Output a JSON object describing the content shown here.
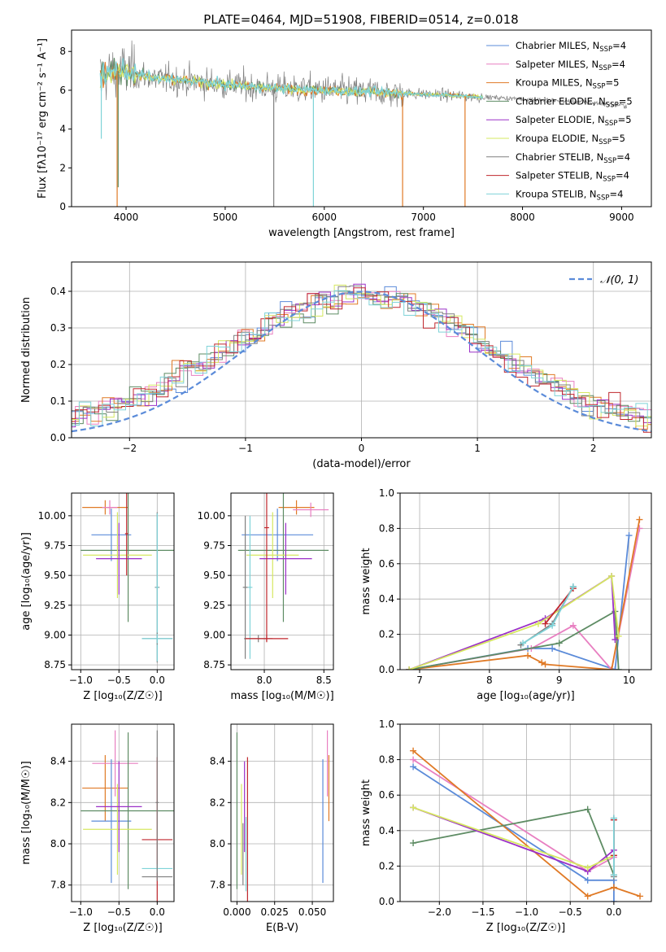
{
  "figure": {
    "title": "PLATE=0464, MJD=51908, FIBERID=0514, z=0.018"
  },
  "colors": {
    "c_chab_miles": "#5b8bd9",
    "c_salp_miles": "#e87fc1",
    "c_krou_miles": "#e07a26",
    "c_chab_elodie": "#5e8c64",
    "c_salp_elodie": "#9b30c8",
    "c_krou_elodie": "#d6e860",
    "c_chab_stelib": "#808080",
    "c_salp_stelib": "#c0272d",
    "c_krou_stelib": "#7fd3d8",
    "c_normal": "#5b8bd9"
  },
  "chart_data": [
    {
      "id": "spectrum",
      "type": "line",
      "xlabel": "wavelength [Angstrom, rest frame]",
      "ylabel": "Flux [fλ10⁻¹⁷ erg cm⁻² s⁻¹ A⁻¹]",
      "xlim": [
        3450,
        9300
      ],
      "ylim": [
        0,
        9.1
      ],
      "xticks": [
        4000,
        5000,
        6000,
        7000,
        8000,
        9000
      ],
      "yticks": [
        0,
        2,
        4,
        6,
        8
      ],
      "grid": false,
      "legend": "top-right",
      "legend_entries": [
        {
          "label": "Chabrier MILES, N",
          "sub": "SSP",
          "tail": "=4",
          "color": "c_chab_miles"
        },
        {
          "label": "Salpeter MILES, N",
          "sub": "SSP",
          "tail": "=4",
          "color": "c_salp_miles"
        },
        {
          "label": "Kroupa MILES, N",
          "sub": "SSP",
          "tail": "=5",
          "color": "c_krou_miles"
        },
        {
          "label": "Chabrier ELODIE, N",
          "sub": "SSP",
          "tail": "=5",
          "color": "c_chab_elodie"
        },
        {
          "label": "Salpeter ELODIE, N",
          "sub": "SSP",
          "tail": "=5",
          "color": "c_salp_elodie"
        },
        {
          "label": "Kroupa ELODIE, N",
          "sub": "SSP",
          "tail": "=5",
          "color": "c_krou_elodie"
        },
        {
          "label": "Chabrier STELIB, N",
          "sub": "SSP",
          "tail": "=4",
          "color": "c_chab_stelib"
        },
        {
          "label": "Salpeter STELIB, N",
          "sub": "SSP",
          "tail": "=4",
          "color": "c_salp_stelib"
        },
        {
          "label": "Kroupa STELIB, N",
          "sub": "SSP",
          "tail": "=4",
          "color": "c_krou_stelib"
        }
      ],
      "continuum": [
        [
          3740,
          6.7
        ],
        [
          3900,
          7.0
        ],
        [
          4000,
          7.0
        ],
        [
          4300,
          6.6
        ],
        [
          4600,
          6.5
        ],
        [
          5000,
          6.3
        ],
        [
          5500,
          6.1
        ],
        [
          6000,
          6.0
        ],
        [
          6500,
          5.9
        ],
        [
          7000,
          5.8
        ],
        [
          7400,
          5.7
        ],
        [
          7800,
          5.6
        ],
        [
          8200,
          5.5
        ],
        [
          8600,
          5.4
        ],
        [
          9050,
          5.2
        ]
      ],
      "dips": [
        {
          "series": "c_krou_miles",
          "x": 3910,
          "y": 0
        },
        {
          "series": "c_chab_elodie",
          "x": 3920,
          "y": 1.0
        },
        {
          "series": "c_chab_stelib",
          "x": 5490,
          "y": 0
        },
        {
          "series": "c_krou_stelib",
          "x": 5890,
          "y": 0
        },
        {
          "series": "c_krou_miles",
          "x": 6790,
          "y": 0
        },
        {
          "series": "c_krou_miles",
          "x": 7420,
          "y": 0
        },
        {
          "series": "c_krou_stelib",
          "x": 3750,
          "y": 3.5
        }
      ]
    },
    {
      "id": "residuals",
      "type": "histogram",
      "xlabel": "(data-model)/error",
      "ylabel": "Normed distribution",
      "xlim": [
        -2.5,
        2.5
      ],
      "ylim": [
        0,
        0.48
      ],
      "xticks": [
        -2,
        -1,
        0,
        1,
        2
      ],
      "yticks": [
        0.0,
        0.1,
        0.2,
        0.3,
        0.4
      ],
      "grid": true,
      "legend": "top-right",
      "legend_label": "𝒩(0, 1)",
      "bin_width": 0.1
    },
    {
      "id": "age_vs_Z",
      "type": "errorbar",
      "xlabel": "Z [log₁₀(Z/Z☉)]",
      "ylabel": "age  [log₁₀(age/yr)]",
      "xlim": [
        -1.12,
        0.22
      ],
      "ylim": [
        8.71,
        10.19
      ],
      "xticks": [
        -1.0,
        -0.5,
        0.0
      ],
      "yticks": [
        8.75,
        9.0,
        9.25,
        9.5,
        9.75,
        10.0
      ],
      "points": [
        {
          "c": "c_krou_miles",
          "x": -0.68,
          "y": 10.07,
          "xerr": 0.3,
          "yerr": 0.06
        },
        {
          "c": "c_salp_miles",
          "x": -0.62,
          "y": 10.07,
          "xerr": 0.1,
          "yerr": 0.06
        },
        {
          "c": "c_chab_miles",
          "x": -0.6,
          "y": 9.84,
          "xerr": 0.26,
          "yerr": 0.22
        },
        {
          "c": "c_chab_elodie",
          "x": -0.38,
          "y": 9.71,
          "xerr": 0.62,
          "yerr": 0.6
        },
        {
          "c": "c_krou_elodie",
          "x": -0.52,
          "y": 9.67,
          "xerr": 0.45,
          "yerr": 0.36
        },
        {
          "c": "c_salp_elodie",
          "x": -0.5,
          "y": 9.64,
          "xerr": 0.3,
          "yerr": 0.3
        },
        {
          "c": "c_salp_stelib",
          "x": -0.4,
          "y": 9.85,
          "xerr": 0.02,
          "yerr": 0.35
        },
        {
          "c": "c_chab_stelib",
          "x": 0.0,
          "y": 9.4,
          "xerr": 0.03,
          "yerr": 0.63
        },
        {
          "c": "c_krou_stelib",
          "x": 0.0,
          "y": 9.4,
          "xerr": 0.02,
          "yerr": 0.62
        },
        {
          "c": "c_chab_stelib",
          "x": 0.0,
          "y": 8.97,
          "xerr": 0.2,
          "yerr": 0.05
        },
        {
          "c": "c_krou_stelib",
          "x": 0.0,
          "y": 8.97,
          "xerr": 0.2,
          "yerr": 0.04
        }
      ]
    },
    {
      "id": "age_vs_mass",
      "type": "errorbar",
      "xlabel": "mass [log₁₀(M/M☉)]",
      "ylabel": "",
      "xlim": [
        7.72,
        8.58
      ],
      "ylim": [
        8.71,
        10.19
      ],
      "xticks": [
        8.0,
        8.5
      ],
      "yticks": [
        8.75,
        9.0,
        9.25,
        9.5,
        9.75,
        10.0
      ],
      "points": [
        {
          "c": "c_krou_miles",
          "x": 8.27,
          "y": 10.07,
          "xerr": 0.15,
          "yerr": 0.06
        },
        {
          "c": "c_salp_miles",
          "x": 8.39,
          "y": 10.05,
          "xerr": 0.15,
          "yerr": 0.06
        },
        {
          "c": "c_chab_miles",
          "x": 8.11,
          "y": 9.84,
          "xerr": 0.3,
          "yerr": 0.22
        },
        {
          "c": "c_chab_elodie",
          "x": 8.16,
          "y": 9.71,
          "xerr": 0.38,
          "yerr": 0.6
        },
        {
          "c": "c_krou_elodie",
          "x": 8.07,
          "y": 9.67,
          "xerr": 0.22,
          "yerr": 0.36
        },
        {
          "c": "c_salp_elodie",
          "x": 8.18,
          "y": 9.64,
          "xerr": 0.22,
          "yerr": 0.3
        },
        {
          "c": "c_salp_stelib",
          "x": 8.02,
          "y": 9.9,
          "xerr": 0.02,
          "yerr": 0.95
        },
        {
          "c": "c_chab_stelib",
          "x": 7.84,
          "y": 9.4,
          "xerr": 0.02,
          "yerr": 0.6
        },
        {
          "c": "c_krou_stelib",
          "x": 7.88,
          "y": 9.4,
          "xerr": 0.02,
          "yerr": 0.6
        },
        {
          "c": "c_chab_stelib",
          "x": 7.95,
          "y": 8.97,
          "xerr": 0.12,
          "yerr": 0.03
        },
        {
          "c": "c_salp_stelib",
          "x": 8.02,
          "y": 8.97,
          "xerr": 0.18,
          "yerr": 0.03
        }
      ]
    },
    {
      "id": "weight_vs_age",
      "type": "line",
      "xlabel": "age  [log₁₀(age/yr)]",
      "ylabel": "mass weight",
      "xlim": [
        6.72,
        10.32
      ],
      "ylim": [
        0,
        1.0
      ],
      "xticks": [
        7,
        8,
        9,
        10
      ],
      "yticks": [
        0.0,
        0.2,
        0.4,
        0.6,
        0.8,
        1.0
      ],
      "series": [
        {
          "c": "c_chab_miles",
          "age": [
            6.85,
            8.55,
            8.9,
            9.8,
            10.0
          ],
          "w": [
            0.0,
            0.12,
            0.12,
            0.0,
            0.76
          ]
        },
        {
          "c": "c_salp_miles",
          "age": [
            6.85,
            8.6,
            9.2,
            9.75,
            10.15
          ],
          "w": [
            0.0,
            0.12,
            0.25,
            0.0,
            0.8
          ]
        },
        {
          "c": "c_krou_miles",
          "age": [
            6.85,
            8.55,
            8.75,
            8.8,
            9.75,
            10.15
          ],
          "w": [
            0.0,
            0.08,
            0.04,
            0.03,
            0.0,
            0.85
          ]
        },
        {
          "c": "c_chab_elodie",
          "age": [
            6.85,
            9.0,
            9.8,
            9.85
          ],
          "w": [
            0.0,
            0.15,
            0.33,
            0.0
          ]
        },
        {
          "c": "c_salp_elodie",
          "age": [
            6.85,
            8.8,
            9.75,
            9.8
          ],
          "w": [
            0.0,
            0.29,
            0.53,
            0.17
          ]
        },
        {
          "c": "c_krou_elodie",
          "age": [
            6.85,
            8.7,
            9.75,
            9.85
          ],
          "w": [
            0.0,
            0.26,
            0.53,
            0.19
          ]
        },
        {
          "c": "c_chab_stelib",
          "age": [
            8.45,
            8.9,
            9.2
          ],
          "w": [
            0.14,
            0.26,
            0.47
          ]
        },
        {
          "c": "c_salp_stelib",
          "age": [
            8.8,
            9.2
          ],
          "w": [
            0.26,
            0.46
          ]
        },
        {
          "c": "c_krou_stelib",
          "age": [
            8.48,
            8.9,
            9.2
          ],
          "w": [
            0.15,
            0.25,
            0.47
          ]
        }
      ]
    },
    {
      "id": "mass_vs_Z",
      "type": "errorbar",
      "xlabel": "Z [log₁₀(Z/Z☉)]",
      "ylabel": "mass [log₁₀(M/M☉)]",
      "xlim": [
        -1.12,
        0.22
      ],
      "ylim": [
        7.72,
        8.58
      ],
      "xticks": [
        -1.0,
        -0.5,
        0.0
      ],
      "yticks": [
        7.8,
        8.0,
        8.2,
        8.4
      ],
      "points": [
        {
          "c": "c_krou_miles",
          "x": -0.68,
          "y": 8.27,
          "xerr": 0.3,
          "yerr": 0.16
        },
        {
          "c": "c_salp_miles",
          "x": -0.55,
          "y": 8.39,
          "xerr": 0.3,
          "yerr": 0.16
        },
        {
          "c": "c_chab_miles",
          "x": -0.6,
          "y": 8.11,
          "xerr": 0.26,
          "yerr": 0.3
        },
        {
          "c": "c_chab_elodie",
          "x": -0.38,
          "y": 8.16,
          "xerr": 0.62,
          "yerr": 0.38
        },
        {
          "c": "c_krou_elodie",
          "x": -0.52,
          "y": 8.07,
          "xerr": 0.45,
          "yerr": 0.22
        },
        {
          "c": "c_salp_elodie",
          "x": -0.5,
          "y": 8.18,
          "xerr": 0.3,
          "yerr": 0.22
        },
        {
          "c": "c_salp_stelib",
          "x": 0.0,
          "y": 8.02,
          "xerr": 0.2,
          "yerr": 0.4
        },
        {
          "c": "c_chab_stelib",
          "x": 0.0,
          "y": 7.84,
          "xerr": 0.2,
          "yerr": 0.02
        },
        {
          "c": "c_krou_stelib",
          "x": 0.0,
          "y": 7.88,
          "xerr": 0.2,
          "yerr": 0.02
        },
        {
          "c": "c_chab_stelib",
          "x": 0.0,
          "y": 8.2,
          "xerr": 0.02,
          "yerr": 0.35
        }
      ]
    },
    {
      "id": "mass_vs_ebv",
      "type": "errorbar",
      "xlabel": "E(B-V)",
      "ylabel": "",
      "xlim": [
        -0.004,
        0.064
      ],
      "ylim": [
        7.72,
        8.58
      ],
      "xticks": [
        0.0,
        0.025,
        0.05
      ],
      "xticklabels": [
        "0.000",
        "0.025",
        "0.050"
      ],
      "yticks": [
        7.8,
        8.0,
        8.2,
        8.4
      ],
      "points": [
        {
          "c": "c_salp_miles",
          "x": 0.06,
          "y": 8.39,
          "xerr": 0,
          "yerr": 0.16
        },
        {
          "c": "c_krou_miles",
          "x": 0.061,
          "y": 8.27,
          "xerr": 0,
          "yerr": 0.16
        },
        {
          "c": "c_chab_miles",
          "x": 0.057,
          "y": 8.11,
          "xerr": 0,
          "yerr": 0.3
        },
        {
          "c": "c_chab_elodie",
          "x": 0.0,
          "y": 8.16,
          "xerr": 0,
          "yerr": 0.38
        },
        {
          "c": "c_krou_elodie",
          "x": 0.003,
          "y": 8.07,
          "xerr": 0,
          "yerr": 0.22
        },
        {
          "c": "c_salp_elodie",
          "x": 0.005,
          "y": 8.18,
          "xerr": 0,
          "yerr": 0.22
        },
        {
          "c": "c_salp_stelib",
          "x": 0.007,
          "y": 8.02,
          "xerr": 0,
          "yerr": 0.4
        },
        {
          "c": "c_chab_stelib",
          "x": 0.004,
          "y": 7.95,
          "xerr": 0,
          "yerr": 0.15
        },
        {
          "c": "c_krou_stelib",
          "x": 0.006,
          "y": 7.95,
          "xerr": 0,
          "yerr": 0.18
        }
      ]
    },
    {
      "id": "weight_vs_Z",
      "type": "line",
      "xlabel": "Z [log₁₀(Z/Z☉)]",
      "ylabel": "mass weight",
      "xlim": [
        -2.45,
        0.43
      ],
      "ylim": [
        0,
        1.0
      ],
      "xticks": [
        -2.0,
        -1.5,
        -1.0,
        -0.5,
        0.0
      ],
      "yticks": [
        0.0,
        0.2,
        0.4,
        0.6,
        0.8,
        1.0
      ],
      "series": [
        {
          "c": "c_chab_miles",
          "Z": [
            -2.3,
            -0.3,
            0.0,
            0.0
          ],
          "w": [
            0.76,
            0.12,
            0.12,
            0.0
          ]
        },
        {
          "c": "c_salp_miles",
          "Z": [
            -2.3,
            -0.3,
            0.0
          ],
          "w": [
            0.8,
            0.17,
            0.25
          ]
        },
        {
          "c": "c_krou_miles",
          "Z": [
            -2.3,
            -0.3,
            0.0,
            0.3
          ],
          "w": [
            0.85,
            0.03,
            0.08,
            0.03
          ]
        },
        {
          "c": "c_chab_elodie",
          "Z": [
            -2.3,
            -0.3,
            0.0
          ],
          "w": [
            0.33,
            0.52,
            0.15
          ]
        },
        {
          "c": "c_salp_elodie",
          "Z": [
            -2.3,
            -0.3,
            0.0
          ],
          "w": [
            0.53,
            0.17,
            0.29
          ]
        },
        {
          "c": "c_krou_elodie",
          "Z": [
            -2.3,
            -0.3,
            0.0
          ],
          "w": [
            0.53,
            0.19,
            0.26
          ]
        },
        {
          "c": "c_chab_stelib",
          "Z": [
            0.0,
            0.0
          ],
          "w": [
            0.14,
            0.47
          ]
        },
        {
          "c": "c_salp_stelib",
          "Z": [
            0.0,
            0.0
          ],
          "w": [
            0.26,
            0.46
          ]
        },
        {
          "c": "c_krou_stelib",
          "Z": [
            0.0,
            0.0
          ],
          "w": [
            0.15,
            0.47
          ]
        }
      ]
    }
  ]
}
